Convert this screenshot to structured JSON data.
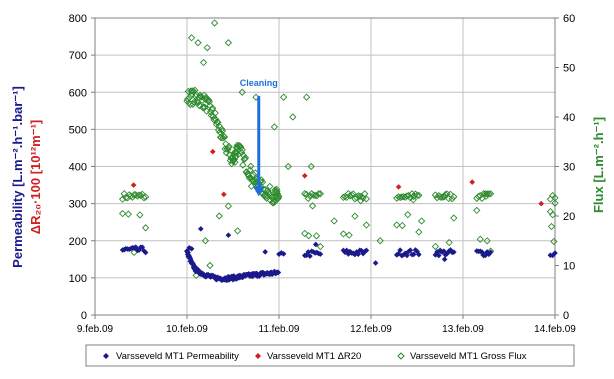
{
  "chart_data": {
    "type": "scatter",
    "title": "",
    "x_ticks": [
      "9.feb.09",
      "10.feb.09",
      "11.feb.09",
      "12.feb.09",
      "13.feb.09",
      "14.feb.09"
    ],
    "xlim": [
      0,
      5
    ],
    "ylim_left": [
      0,
      800
    ],
    "yticks_left": [
      "0",
      "100",
      "200",
      "300",
      "400",
      "500",
      "600",
      "700",
      "800"
    ],
    "ylim_right": [
      0,
      60
    ],
    "yticks_right": [
      "0",
      "10",
      "20",
      "30",
      "40",
      "50",
      "60"
    ],
    "ylabel_left": {
      "line1": "Permeability [L.m⁻².h⁻¹.bar⁻¹]",
      "line2": "ΔR₂₀·100 [10¹²m⁻¹]"
    },
    "ylabel_right": "Flux [L.m⁻².h⁻¹]",
    "annotation": {
      "text": "Cleaning",
      "x": 1.78,
      "y_from": 590,
      "y_to": 320
    },
    "grid": true,
    "legend_position": "bottom",
    "series": [
      {
        "name": "Varsseveld MT1 Permeability",
        "marker": "diamond-filled",
        "color": "#1a1a8c",
        "axis": "left",
        "segments": [
          {
            "x_start": 0.3,
            "x_end": 0.55,
            "y": 175
          },
          {
            "x_start": 1.0,
            "x_end": 1.05,
            "y": 175
          },
          {
            "x_start": 2.0,
            "x_end": 2.05,
            "y": 160
          },
          {
            "x_start": 2.28,
            "x_end": 2.45,
            "y": 165
          },
          {
            "x_start": 2.7,
            "x_end": 2.95,
            "y": 168
          },
          {
            "x_start": 3.28,
            "x_end": 3.52,
            "y": 168
          },
          {
            "x_start": 3.7,
            "x_end": 3.9,
            "y": 168
          },
          {
            "x_start": 4.15,
            "x_end": 4.3,
            "y": 168
          },
          {
            "x_start": 4.95,
            "x_end": 5.0,
            "y": 165
          }
        ],
        "decline": [
          {
            "x": 1.0,
            "y": 170
          },
          {
            "x": 1.05,
            "y": 140
          },
          {
            "x": 1.1,
            "y": 120
          },
          {
            "x": 1.2,
            "y": 108
          },
          {
            "x": 1.3,
            "y": 100
          },
          {
            "x": 1.4,
            "y": 98
          },
          {
            "x": 1.5,
            "y": 100
          },
          {
            "x": 1.6,
            "y": 104
          },
          {
            "x": 1.7,
            "y": 107
          },
          {
            "x": 1.8,
            "y": 110
          },
          {
            "x": 1.9,
            "y": 112
          },
          {
            "x": 2.0,
            "y": 114
          }
        ],
        "outliers": [
          {
            "x": 1.15,
            "y": 232
          },
          {
            "x": 1.45,
            "y": 215
          },
          {
            "x": 1.85,
            "y": 170
          },
          {
            "x": 2.4,
            "y": 190
          },
          {
            "x": 3.05,
            "y": 140
          },
          {
            "x": 3.8,
            "y": 150
          }
        ]
      },
      {
        "name": "Varsseveld MT1 ΔR20",
        "marker": "diamond-filled",
        "color": "#d02020",
        "axis": "left",
        "points": [
          {
            "x": 0.42,
            "y": 350
          },
          {
            "x": 1.28,
            "y": 440
          },
          {
            "x": 1.4,
            "y": 325
          },
          {
            "x": 2.28,
            "y": 375
          },
          {
            "x": 3.3,
            "y": 345
          },
          {
            "x": 4.1,
            "y": 358
          },
          {
            "x": 4.85,
            "y": 300
          }
        ]
      },
      {
        "name": "Varsseveld MT1 Gross Flux",
        "marker": "diamond-open",
        "color": "#2e8b2e",
        "axis": "right",
        "segments": [
          {
            "x_start": 0.3,
            "x_end": 0.55,
            "y": 24
          },
          {
            "x_start": 2.28,
            "x_end": 2.45,
            "y": 24
          },
          {
            "x_start": 2.7,
            "x_end": 2.95,
            "y": 24
          },
          {
            "x_start": 3.28,
            "x_end": 3.52,
            "y": 24
          },
          {
            "x_start": 3.7,
            "x_end": 3.9,
            "y": 24
          },
          {
            "x_start": 4.15,
            "x_end": 4.3,
            "y": 24
          },
          {
            "x_start": 4.95,
            "x_end": 5.0,
            "y": 24
          }
        ],
        "decline": [
          {
            "x": 1.0,
            "y": 44
          },
          {
            "x": 1.1,
            "y": 44
          },
          {
            "x": 1.2,
            "y": 43
          },
          {
            "x": 1.3,
            "y": 40
          },
          {
            "x": 1.4,
            "y": 35
          },
          {
            "x": 1.5,
            "y": 31
          },
          {
            "x": 1.55,
            "y": 34
          },
          {
            "x": 1.65,
            "y": 30
          },
          {
            "x": 1.75,
            "y": 27
          },
          {
            "x": 1.85,
            "y": 25
          },
          {
            "x": 1.95,
            "y": 24
          },
          {
            "x": 2.0,
            "y": 24
          }
        ],
        "outliers": [
          {
            "x": 1.05,
            "y": 56
          },
          {
            "x": 1.12,
            "y": 55
          },
          {
            "x": 1.22,
            "y": 54
          },
          {
            "x": 1.3,
            "y": 59
          },
          {
            "x": 1.45,
            "y": 55
          },
          {
            "x": 1.18,
            "y": 51
          },
          {
            "x": 1.6,
            "y": 45
          },
          {
            "x": 1.75,
            "y": 44
          },
          {
            "x": 2.05,
            "y": 44
          },
          {
            "x": 2.3,
            "y": 44
          },
          {
            "x": 2.15,
            "y": 40
          },
          {
            "x": 1.95,
            "y": 38
          },
          {
            "x": 2.1,
            "y": 30
          },
          {
            "x": 1.35,
            "y": 20
          },
          {
            "x": 1.2,
            "y": 15
          },
          {
            "x": 1.55,
            "y": 17
          },
          {
            "x": 1.7,
            "y": 26
          },
          {
            "x": 1.1,
            "y": 8
          },
          {
            "x": 1.25,
            "y": 10
          },
          {
            "x": 1.45,
            "y": 22
          },
          {
            "x": 2.35,
            "y": 30
          },
          {
            "x": 2.6,
            "y": 19
          },
          {
            "x": 3.1,
            "y": 15
          },
          {
            "x": 3.55,
            "y": 19
          },
          {
            "x": 4.25,
            "y": 24
          }
        ]
      }
    ]
  }
}
